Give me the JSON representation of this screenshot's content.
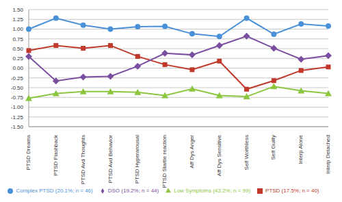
{
  "chart_data": {
    "type": "line",
    "categories": [
      "PTSD Dreams",
      "PTSD Flashback",
      "PTSD Avd Thoughts",
      "PTSD Avd Behavior",
      "PTSD Hyperarousal",
      "PTSD Startle reaction",
      "Aff Dys Anger",
      "Aff Dys Sensitive",
      "Self Worthless",
      "Self Guilty",
      "Interp Alone",
      "Interp Detached"
    ],
    "series": [
      {
        "name": "Complex PTSD (20.1%; n = 46)",
        "color": "#4a90d9",
        "marker": "circle",
        "values": [
          1.0,
          1.28,
          1.1,
          1.0,
          1.06,
          1.07,
          0.88,
          0.81,
          1.28,
          0.87,
          1.13,
          1.08
        ]
      },
      {
        "name": "PTSD (17.5%; n = 40)",
        "color": "#c0392b",
        "marker": "square",
        "values": [
          0.45,
          0.58,
          0.51,
          0.58,
          0.3,
          0.09,
          -0.04,
          0.18,
          -0.54,
          -0.32,
          -0.06,
          0.03
        ]
      },
      {
        "name": "DSO (19.2%; n = 44)",
        "color": "#7b4fa0",
        "marker": "diamond",
        "values": [
          0.3,
          -0.33,
          -0.23,
          -0.21,
          0.05,
          0.38,
          0.34,
          0.58,
          0.82,
          0.51,
          0.23,
          0.32
        ]
      },
      {
        "name": "Low Symptoms (43.2%; n = 99)",
        "color": "#8cc63f",
        "marker": "triangle",
        "values": [
          -0.77,
          -0.65,
          -0.6,
          -0.6,
          -0.62,
          -0.7,
          -0.53,
          -0.7,
          -0.73,
          -0.47,
          -0.58,
          -0.65
        ]
      }
    ],
    "ylim": [
      -1.5,
      1.5
    ],
    "yticks": [
      {
        "value": -1.5,
        "label": "-1.50"
      },
      {
        "value": -1.25,
        "label": "-1.25"
      },
      {
        "value": -1,
        "label": "-1.00"
      },
      {
        "value": -0.75,
        "label": "-0.75"
      },
      {
        "value": -0.5,
        "label": "-0.50"
      },
      {
        "value": -0.25,
        "label": "-0.25"
      },
      {
        "value": 0,
        "label": "0.00"
      },
      {
        "value": 0.25,
        "label": "0.25"
      },
      {
        "value": 0.5,
        "label": "0.50"
      },
      {
        "value": 0.75,
        "label": "0.75"
      },
      {
        "value": 1,
        "label": "1.00"
      },
      {
        "value": 1.25,
        "label": "1.25"
      },
      {
        "value": 1.5,
        "label": "1.50"
      }
    ],
    "grid": true,
    "legend": "bottom"
  }
}
